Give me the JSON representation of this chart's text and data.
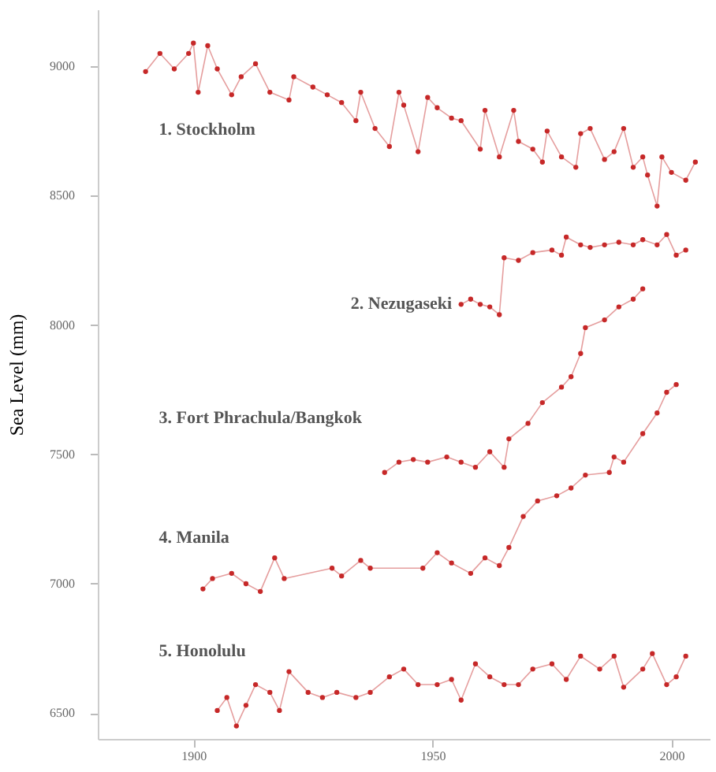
{
  "chart_data": {
    "type": "line",
    "ylabel": "Sea Level (mm)",
    "xlim": [
      1880,
      2008
    ],
    "ylim": [
      6400,
      9220
    ],
    "xticks": [
      1900,
      1950,
      2000
    ],
    "yticks": [
      6500,
      7000,
      7500,
      8000,
      8500,
      9000
    ],
    "grid": false,
    "marker": "circle",
    "line_style": "solid",
    "series": [
      {
        "name": "1. Stockholm",
        "color": "#c62828",
        "x": [
          1890,
          1893,
          1896,
          1899,
          1900,
          1901,
          1903,
          1905,
          1908,
          1910,
          1913,
          1916,
          1920,
          1921,
          1925,
          1928,
          1931,
          1934,
          1935,
          1938,
          1941,
          1943,
          1944,
          1947,
          1949,
          1951,
          1954,
          1956,
          1960,
          1961,
          1964,
          1967,
          1968,
          1971,
          1973,
          1974,
          1977,
          1980,
          1981,
          1983,
          1986,
          1988,
          1990,
          1992,
          1994,
          1995,
          1997,
          1998,
          2000,
          2003,
          2005
        ],
        "values": [
          8980,
          9050,
          8990,
          9050,
          9090,
          8900,
          9080,
          8990,
          8890,
          8960,
          9010,
          8900,
          8870,
          8960,
          8920,
          8890,
          8860,
          8790,
          8900,
          8760,
          8690,
          8900,
          8850,
          8670,
          8880,
          8840,
          8800,
          8790,
          8680,
          8830,
          8650,
          8830,
          8710,
          8680,
          8630,
          8750,
          8650,
          8610,
          8740,
          8760,
          8640,
          8670,
          8760,
          8610,
          8650,
          8580,
          8460,
          8650,
          8590,
          8560,
          8630
        ]
      },
      {
        "name": "2. Nezugaseki",
        "color": "#c62828",
        "x": [
          1956,
          1958,
          1960,
          1962,
          1964,
          1965,
          1968,
          1971,
          1975,
          1977,
          1978,
          1981,
          1983,
          1986,
          1989,
          1992,
          1994,
          1997,
          1999,
          2001,
          2003
        ],
        "values": [
          8080,
          8100,
          8080,
          8070,
          8040,
          8260,
          8250,
          8280,
          8290,
          8270,
          8340,
          8310,
          8300,
          8310,
          8320,
          8310,
          8330,
          8310,
          8350,
          8270,
          8290
        ]
      },
      {
        "name": "3. Fort Phrachula/Bangkok",
        "color": "#c62828",
        "x": [
          1940,
          1943,
          1946,
          1949,
          1953,
          1956,
          1959,
          1962,
          1965,
          1966,
          1970,
          1973,
          1977,
          1979,
          1981,
          1982,
          1986,
          1989,
          1992,
          1994
        ],
        "values": [
          7430,
          7470,
          7480,
          7470,
          7490,
          7470,
          7450,
          7510,
          7450,
          7560,
          7620,
          7700,
          7760,
          7800,
          7890,
          7990,
          8020,
          8070,
          8100,
          8140
        ]
      },
      {
        "name": "4. Manila",
        "color": "#c62828",
        "x": [
          1902,
          1904,
          1908,
          1911,
          1914,
          1917,
          1919,
          1929,
          1931,
          1935,
          1937,
          1948,
          1951,
          1954,
          1958,
          1961,
          1964,
          1966,
          1969,
          1972,
          1976,
          1979,
          1982,
          1987,
          1988,
          1990,
          1994,
          1997,
          1999,
          2001
        ],
        "values": [
          6980,
          7020,
          7040,
          7000,
          6970,
          7100,
          7020,
          7060,
          7030,
          7090,
          7060,
          7060,
          7120,
          7080,
          7040,
          7100,
          7070,
          7140,
          7260,
          7320,
          7340,
          7370,
          7420,
          7430,
          7490,
          7470,
          7580,
          7660,
          7740,
          7770
        ]
      },
      {
        "name": "5. Honolulu",
        "color": "#c62828",
        "x": [
          1905,
          1907,
          1909,
          1911,
          1913,
          1916,
          1918,
          1920,
          1924,
          1927,
          1930,
          1934,
          1937,
          1941,
          1944,
          1947,
          1951,
          1954,
          1956,
          1959,
          1962,
          1965,
          1968,
          1971,
          1975,
          1978,
          1981,
          1985,
          1988,
          1990,
          1994,
          1996,
          1999,
          2001,
          2003
        ],
        "values": [
          6510,
          6560,
          6450,
          6530,
          6610,
          6580,
          6510,
          6660,
          6580,
          6560,
          6580,
          6560,
          6580,
          6640,
          6670,
          6610,
          6610,
          6630,
          6550,
          6690,
          6640,
          6610,
          6610,
          6670,
          6690,
          6630,
          6720,
          6670,
          6720,
          6600,
          6670,
          6730,
          6610,
          6640,
          6720
        ]
      }
    ]
  }
}
